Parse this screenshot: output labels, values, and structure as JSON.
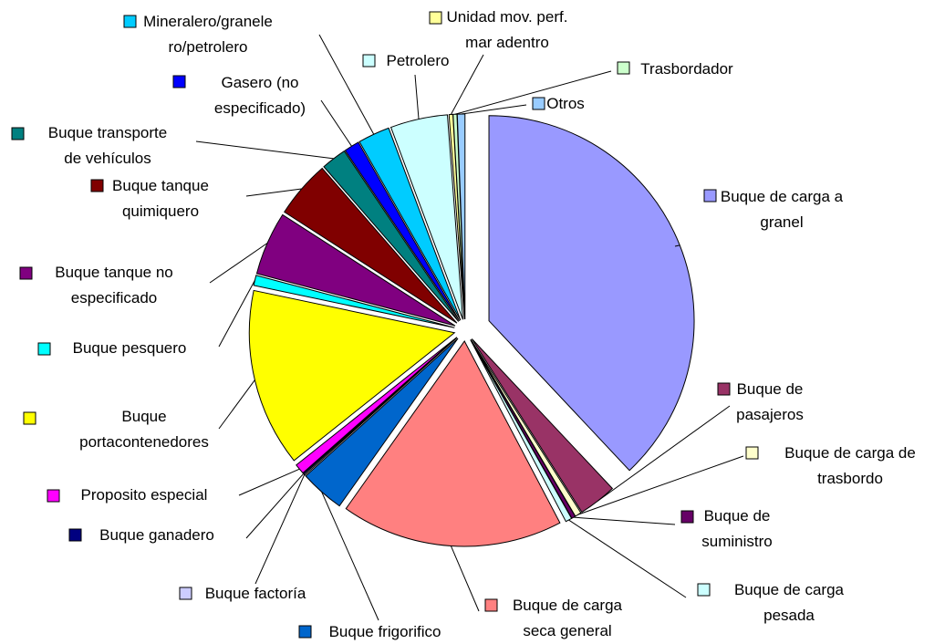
{
  "chart_data": {
    "type": "pie",
    "categories": [
      "Buque de carga a\ngranel",
      "Buque de\npasajeros",
      "Buque de carga de\ntrasbordo",
      "Buque de\nsuministro",
      "Buque de carga\npesada",
      "Buque de carga\nseca general",
      "Buque frigorifico",
      "Buque factoría",
      "Buque ganadero",
      "Proposito especial",
      "Buque\nportacontenedores",
      "Buque pesquero",
      "Buque tanque no\nespecificado",
      "Buque tanque\nquimiquero",
      "Buque transporte\nde vehículos",
      "Gasero (no\nespecificado)",
      "Mineralero/granele\nro/petrolero",
      "Petrolero",
      "Unidad mov. perf.\nmar adentro",
      "Trasbordador",
      "Otros"
    ],
    "values": [
      38,
      3,
      0.5,
      0.3,
      0.5,
      17.5,
      3.5,
      0.1,
      0.1,
      0.8,
      14,
      0.8,
      5,
      4.5,
      2,
      1.2,
      2.5,
      4.5,
      0.3,
      0.3,
      0.6
    ],
    "colors": [
      "#9999ff",
      "#993366",
      "#ffffcc",
      "#660066",
      "#ccffff",
      "#ff8080",
      "#0066cc",
      "#ccccff",
      "#000080",
      "#ff00ff",
      "#ffff00",
      "#00ffff",
      "#800080",
      "#800000",
      "#008080",
      "#0000ff",
      "#00ccff",
      "#ccffff",
      "#ffff99",
      "#ccffcc",
      "#99ccff"
    ]
  }
}
